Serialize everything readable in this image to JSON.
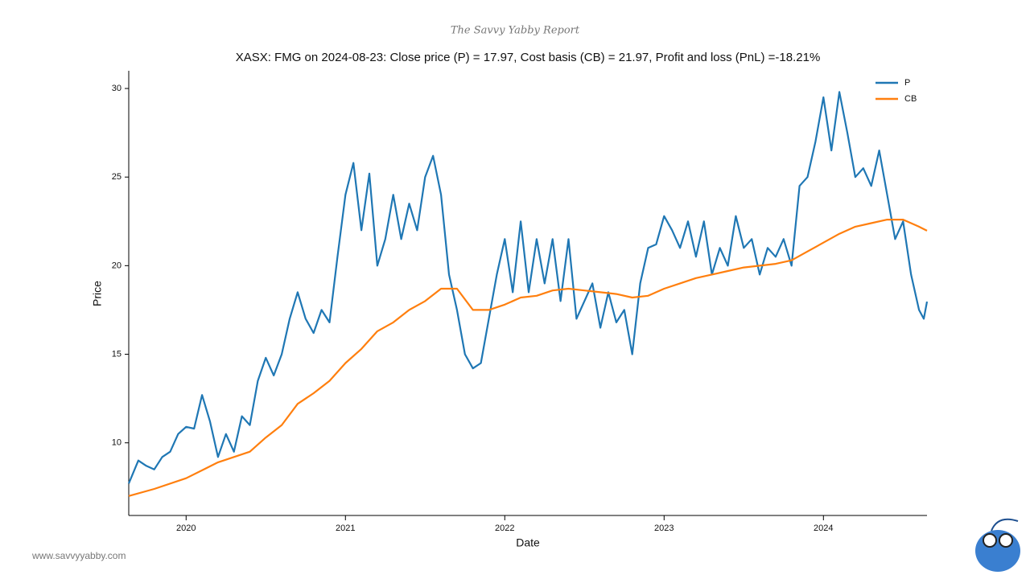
{
  "header": "The Savvy Yabby Report",
  "footer": "www.savvyyabby.com",
  "chart_data": {
    "type": "line",
    "title": "XASX: FMG on 2024-08-23: Close price (P) = 17.97, Cost basis (CB) = 21.97, Profit and loss (PnL) =-18.21%",
    "x_label": "Date",
    "y_label": "Price",
    "xlim": [
      2019.64,
      2024.65
    ],
    "xticks": [
      2020,
      2021,
      2022,
      2023,
      2024
    ],
    "ylim": [
      5.9,
      31
    ],
    "yticks": [
      10,
      15,
      20,
      25,
      30
    ],
    "legend": "upper right",
    "grid": false,
    "series": [
      {
        "name": "P",
        "color": "#1f77b4",
        "x": [
          2019.64,
          2019.7,
          2019.75,
          2019.8,
          2019.85,
          2019.9,
          2019.95,
          2020,
          2020.05,
          2020.1,
          2020.15,
          2020.2,
          2020.25,
          2020.3,
          2020.35,
          2020.4,
          2020.45,
          2020.5,
          2020.55,
          2020.6,
          2020.65,
          2020.7,
          2020.75,
          2020.8,
          2020.85,
          2020.9,
          2020.95,
          2021,
          2021.05,
          2021.1,
          2021.15,
          2021.2,
          2021.25,
          2021.3,
          2021.35,
          2021.4,
          2021.45,
          2021.5,
          2021.55,
          2021.6,
          2021.65,
          2021.7,
          2021.75,
          2021.8,
          2021.85,
          2021.9,
          2021.95,
          2022,
          2022.05,
          2022.1,
          2022.15,
          2022.2,
          2022.25,
          2022.3,
          2022.35,
          2022.4,
          2022.45,
          2022.5,
          2022.55,
          2022.6,
          2022.65,
          2022.7,
          2022.75,
          2022.8,
          2022.85,
          2022.9,
          2022.95,
          2023,
          2023.05,
          2023.1,
          2023.15,
          2023.2,
          2023.25,
          2023.3,
          2023.35,
          2023.4,
          2023.45,
          2023.5,
          2023.55,
          2023.6,
          2023.65,
          2023.7,
          2023.75,
          2023.8,
          2023.85,
          2023.9,
          2023.95,
          2024,
          2024.05,
          2024.1,
          2024.15,
          2024.2,
          2024.25,
          2024.3,
          2024.35,
          2024.4,
          2024.45,
          2024.5,
          2024.55,
          2024.6,
          2024.63,
          2024.65
        ],
        "values": [
          7.7,
          9.0,
          8.7,
          8.5,
          9.2,
          9.5,
          10.5,
          10.9,
          10.8,
          12.7,
          11.2,
          9.2,
          10.5,
          9.5,
          11.5,
          11.0,
          13.5,
          14.8,
          13.8,
          15.0,
          17.0,
          18.5,
          17.0,
          16.2,
          17.5,
          16.8,
          20.5,
          24.0,
          25.8,
          22.0,
          25.2,
          20.0,
          21.5,
          24.0,
          21.5,
          23.5,
          22.0,
          25.0,
          26.2,
          24.0,
          19.5,
          17.5,
          15.0,
          14.2,
          14.5,
          17.0,
          19.5,
          21.5,
          18.5,
          22.5,
          18.5,
          21.5,
          19.0,
          21.5,
          18.0,
          21.5,
          17.0,
          18.0,
          19.0,
          16.5,
          18.5,
          16.8,
          17.5,
          15.0,
          19.0,
          21.0,
          21.2,
          22.8,
          22.0,
          21.0,
          22.5,
          20.5,
          22.5,
          19.5,
          21.0,
          20.0,
          22.8,
          21.0,
          21.5,
          19.5,
          21.0,
          20.5,
          21.5,
          20.0,
          24.5,
          25.0,
          27.0,
          29.5,
          26.5,
          29.8,
          27.5,
          25.0,
          25.5,
          24.5,
          26.5,
          24.0,
          21.5,
          22.5,
          19.5,
          17.5,
          17.0,
          17.97
        ]
      },
      {
        "name": "CB",
        "color": "#ff7f0e",
        "x": [
          2019.64,
          2019.8,
          2020,
          2020.2,
          2020.4,
          2020.5,
          2020.6,
          2020.7,
          2020.8,
          2020.9,
          2021,
          2021.1,
          2021.2,
          2021.3,
          2021.4,
          2021.5,
          2021.6,
          2021.7,
          2021.8,
          2021.9,
          2022,
          2022.1,
          2022.2,
          2022.3,
          2022.4,
          2022.5,
          2022.6,
          2022.7,
          2022.8,
          2022.9,
          2023,
          2023.1,
          2023.2,
          2023.3,
          2023.4,
          2023.5,
          2023.6,
          2023.7,
          2023.8,
          2023.9,
          2024,
          2024.1,
          2024.2,
          2024.3,
          2024.4,
          2024.5,
          2024.6,
          2024.65
        ],
        "values": [
          7.0,
          7.4,
          8.0,
          8.9,
          9.5,
          10.3,
          11.0,
          12.2,
          12.8,
          13.5,
          14.5,
          15.3,
          16.3,
          16.8,
          17.5,
          18.0,
          18.7,
          18.7,
          17.5,
          17.5,
          17.8,
          18.2,
          18.3,
          18.6,
          18.7,
          18.6,
          18.5,
          18.4,
          18.2,
          18.3,
          18.7,
          19.0,
          19.3,
          19.5,
          19.7,
          19.9,
          20.0,
          20.1,
          20.3,
          20.8,
          21.3,
          21.8,
          22.2,
          22.4,
          22.6,
          22.6,
          22.2,
          21.97
        ]
      }
    ]
  }
}
